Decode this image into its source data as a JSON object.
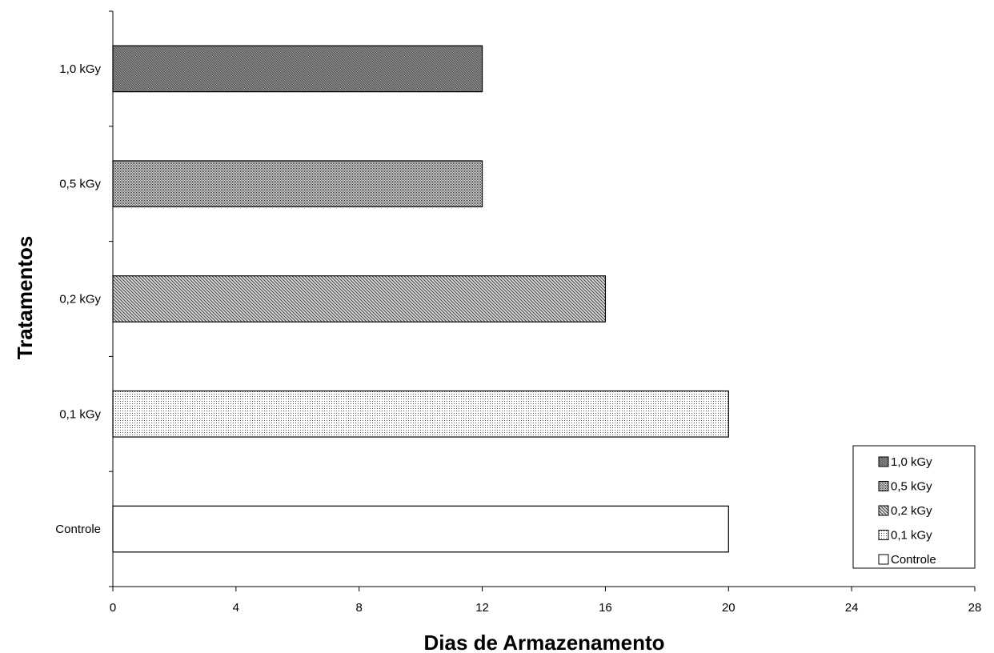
{
  "chart_data": {
    "type": "bar",
    "orientation": "horizontal",
    "categories": [
      "Controle",
      "0,1 kGy",
      "0,2 kGy",
      "0,5 kGy",
      "1,0 kGy"
    ],
    "values": [
      20,
      20,
      16,
      12,
      12
    ],
    "patterns": [
      "none",
      "fine-dots",
      "diagonal-coarse",
      "dense-dots",
      "dense-diagonal"
    ],
    "xlabel": "Dias de Armazenamento",
    "ylabel": "Tratamentos",
    "xlim": [
      0,
      28
    ],
    "xticks": [
      "0",
      "4",
      "8",
      "12",
      "16",
      "20",
      "24",
      "28"
    ],
    "grid": false,
    "legend": {
      "position": "bottom-right",
      "entries": [
        "1,0 kGy",
        "0,5 kGy",
        "0,2 kGy",
        "0,1 kGy",
        "Controle"
      ]
    }
  }
}
